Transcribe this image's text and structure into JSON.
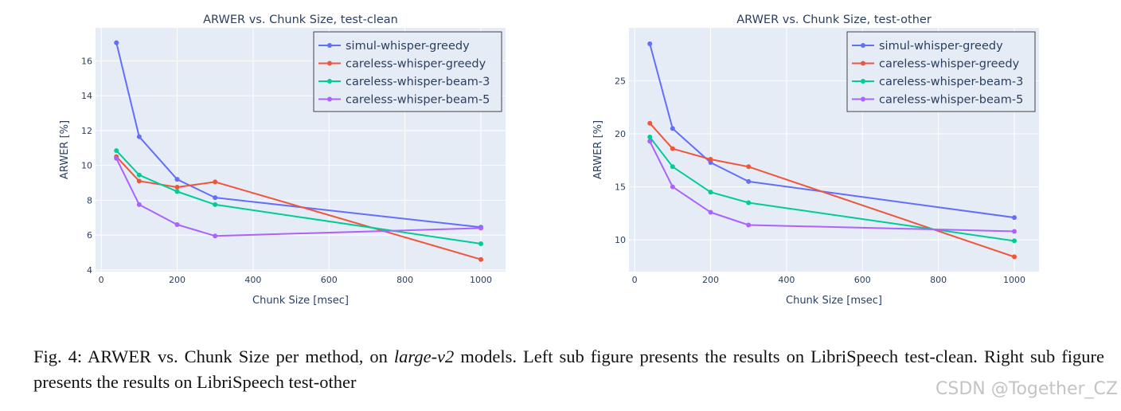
{
  "chart_data": [
    {
      "type": "line",
      "title": "ARWER vs. Chunk Size, test-clean",
      "xlabel": "Chunk Size [msec]",
      "ylabel": "ARWER [%]",
      "xlim": [
        -15,
        1065
      ],
      "ylim": [
        3.9,
        17.9
      ],
      "xticks": [
        0,
        200,
        400,
        600,
        800,
        1000
      ],
      "yticks": [
        4,
        6,
        8,
        10,
        12,
        14,
        16
      ],
      "legend": "top-right",
      "x": [
        40,
        100,
        200,
        300,
        1000
      ],
      "series": [
        {
          "name": "simul-whisper-greedy",
          "color": "#636efa",
          "values": [
            17.05,
            11.65,
            9.2,
            8.15,
            6.45
          ]
        },
        {
          "name": "careless-whisper-greedy",
          "color": "#ef553b",
          "values": [
            10.5,
            9.1,
            8.75,
            9.05,
            4.6
          ]
        },
        {
          "name": "careless-whisper-beam-3",
          "color": "#00cc96",
          "values": [
            10.85,
            9.45,
            8.5,
            7.75,
            5.5
          ]
        },
        {
          "name": "careless-whisper-beam-5",
          "color": "#ab63fa",
          "values": [
            10.4,
            7.75,
            6.6,
            5.95,
            6.4
          ]
        }
      ]
    },
    {
      "type": "line",
      "title": "ARWER vs. Chunk Size, test-other",
      "xlabel": "Chunk Size [msec]",
      "ylabel": "ARWER [%]",
      "xlim": [
        -15,
        1065
      ],
      "ylim": [
        7,
        30
      ],
      "xticks": [
        0,
        200,
        400,
        600,
        800,
        1000
      ],
      "yticks": [
        10,
        15,
        20,
        25
      ],
      "legend": "top-right",
      "x": [
        40,
        100,
        200,
        300,
        1000
      ],
      "series": [
        {
          "name": "simul-whisper-greedy",
          "color": "#636efa",
          "values": [
            28.5,
            20.5,
            17.3,
            15.5,
            12.1
          ]
        },
        {
          "name": "careless-whisper-greedy",
          "color": "#ef553b",
          "values": [
            21.0,
            18.6,
            17.6,
            16.9,
            8.4
          ]
        },
        {
          "name": "careless-whisper-beam-3",
          "color": "#00cc96",
          "values": [
            19.7,
            16.9,
            14.5,
            13.5,
            9.9
          ]
        },
        {
          "name": "careless-whisper-beam-5",
          "color": "#ab63fa",
          "values": [
            19.3,
            15.0,
            12.6,
            11.4,
            10.8
          ]
        }
      ]
    }
  ],
  "caption": {
    "prefix": "Fig. 4: ARWER vs. Chunk Size per method, on ",
    "model": "large-v2",
    "suffix": " models. Left sub figure presents the results on LibriSpeech test-clean. Right sub figure presents the results on LibriSpeech test-other"
  },
  "watermark": "CSDN @Together_CZ",
  "colors": {
    "plot_bg": "#e5ecf6",
    "grid": "#ffffff",
    "text": "#2a3f5f"
  }
}
